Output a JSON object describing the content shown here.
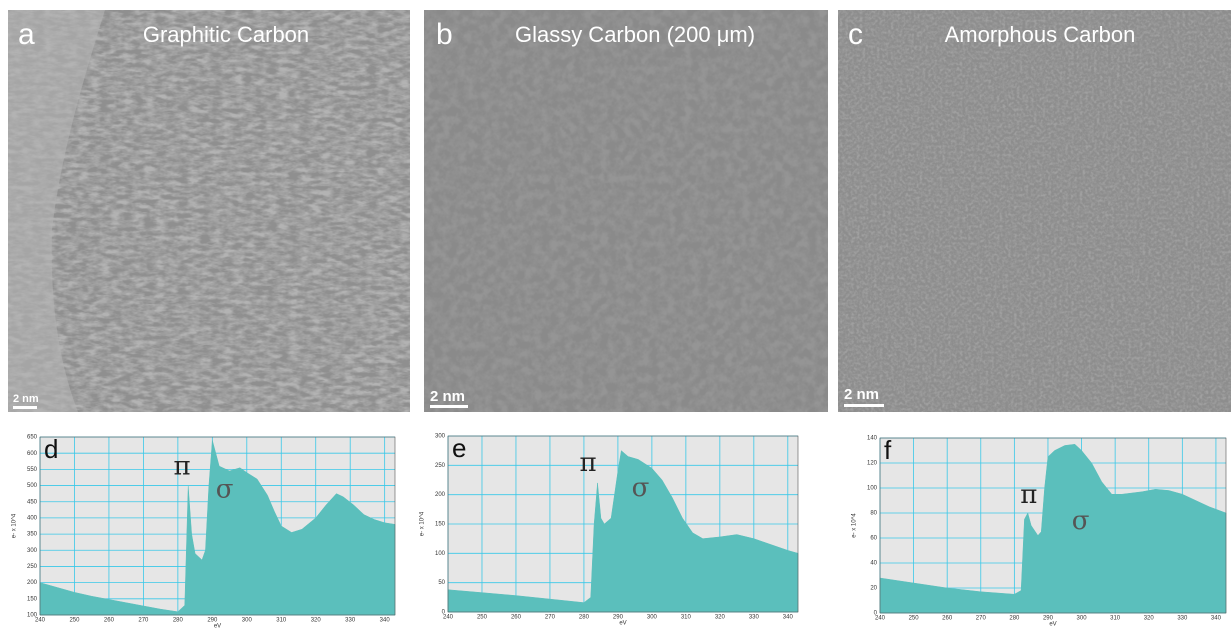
{
  "images": [
    {
      "label": "a",
      "title": "Graphitic Carbon",
      "scale_bar": "2 nm"
    },
    {
      "label": "b",
      "title": "Glassy Carbon (200 μm)",
      "scale_bar": "2 nm"
    },
    {
      "label": "c",
      "title": "Amorphous Carbon",
      "scale_bar": "2 nm"
    }
  ],
  "chart_data": [
    {
      "type": "area",
      "panel_label": "d",
      "x_label": "eV",
      "y_label": "e- x 10^4",
      "color": "#5bbfbc",
      "grid": true,
      "grid_color": "#39c8e8",
      "background": "#e6e6e6",
      "annotations": [
        "π",
        "σ"
      ],
      "x": [
        240,
        245,
        250,
        255,
        260,
        265,
        270,
        275,
        280,
        282,
        283,
        284,
        285,
        287,
        288,
        289,
        290,
        291,
        292,
        295,
        298,
        300,
        303,
        306,
        308,
        310,
        313,
        316,
        320,
        323,
        326,
        328,
        331,
        334,
        337,
        340,
        343
      ],
      "values": [
        200,
        185,
        170,
        158,
        148,
        138,
        128,
        118,
        110,
        130,
        500,
        350,
        290,
        270,
        300,
        500,
        640,
        600,
        560,
        545,
        555,
        540,
        520,
        470,
        420,
        375,
        355,
        365,
        400,
        440,
        475,
        465,
        440,
        410,
        395,
        385,
        380
      ],
      "xlim": [
        240,
        343
      ],
      "xticks": [
        240,
        250,
        260,
        270,
        280,
        290,
        300,
        310,
        320,
        330,
        340
      ],
      "ylim": [
        100,
        650
      ],
      "yticks": [
        100,
        150,
        200,
        250,
        300,
        350,
        400,
        450,
        500,
        550,
        600,
        650
      ]
    },
    {
      "type": "area",
      "panel_label": "e",
      "x_label": "eV",
      "y_label": "e- x 10^4",
      "color": "#5bbfbc",
      "grid": true,
      "grid_color": "#39c8e8",
      "background": "#e6e6e6",
      "annotations": [
        "π",
        "σ"
      ],
      "x": [
        240,
        250,
        260,
        270,
        280,
        282,
        283,
        284,
        285,
        286,
        288,
        290,
        291,
        293,
        296,
        300,
        303,
        306,
        309,
        312,
        315,
        320,
        325,
        330,
        335,
        340,
        343
      ],
      "values": [
        38,
        33,
        28,
        22,
        16,
        25,
        150,
        220,
        160,
        150,
        160,
        240,
        275,
        265,
        260,
        245,
        225,
        195,
        160,
        135,
        125,
        128,
        132,
        125,
        115,
        105,
        100
      ],
      "xlim": [
        240,
        343
      ],
      "xticks": [
        240,
        250,
        260,
        270,
        280,
        290,
        300,
        310,
        320,
        330,
        340
      ],
      "ylim": [
        0,
        300
      ],
      "yticks": [
        0,
        50,
        100,
        150,
        200,
        250,
        300
      ]
    },
    {
      "type": "area",
      "panel_label": "f",
      "x_label": "eV",
      "y_label": "e- x 10^4",
      "color": "#5bbfbc",
      "grid": true,
      "grid_color": "#39c8e8",
      "background": "#e6e6e6",
      "annotations": [
        "π",
        "σ"
      ],
      "x": [
        240,
        250,
        260,
        270,
        280,
        282,
        283,
        284,
        285,
        287,
        288,
        289,
        290,
        292,
        295,
        298,
        300,
        303,
        306,
        309,
        312,
        318,
        322,
        326,
        330,
        334,
        338,
        343
      ],
      "values": [
        28,
        24,
        20,
        17,
        15,
        18,
        75,
        80,
        70,
        62,
        65,
        100,
        125,
        130,
        134,
        135,
        130,
        120,
        105,
        95,
        95,
        97,
        99,
        98,
        95,
        90,
        85,
        80
      ],
      "xlim": [
        240,
        343
      ],
      "xticks": [
        240,
        250,
        260,
        270,
        280,
        290,
        300,
        310,
        320,
        330,
        340
      ],
      "ylim": [
        0,
        140
      ],
      "yticks": [
        0,
        20,
        40,
        60,
        80,
        100,
        120,
        140
      ]
    }
  ]
}
